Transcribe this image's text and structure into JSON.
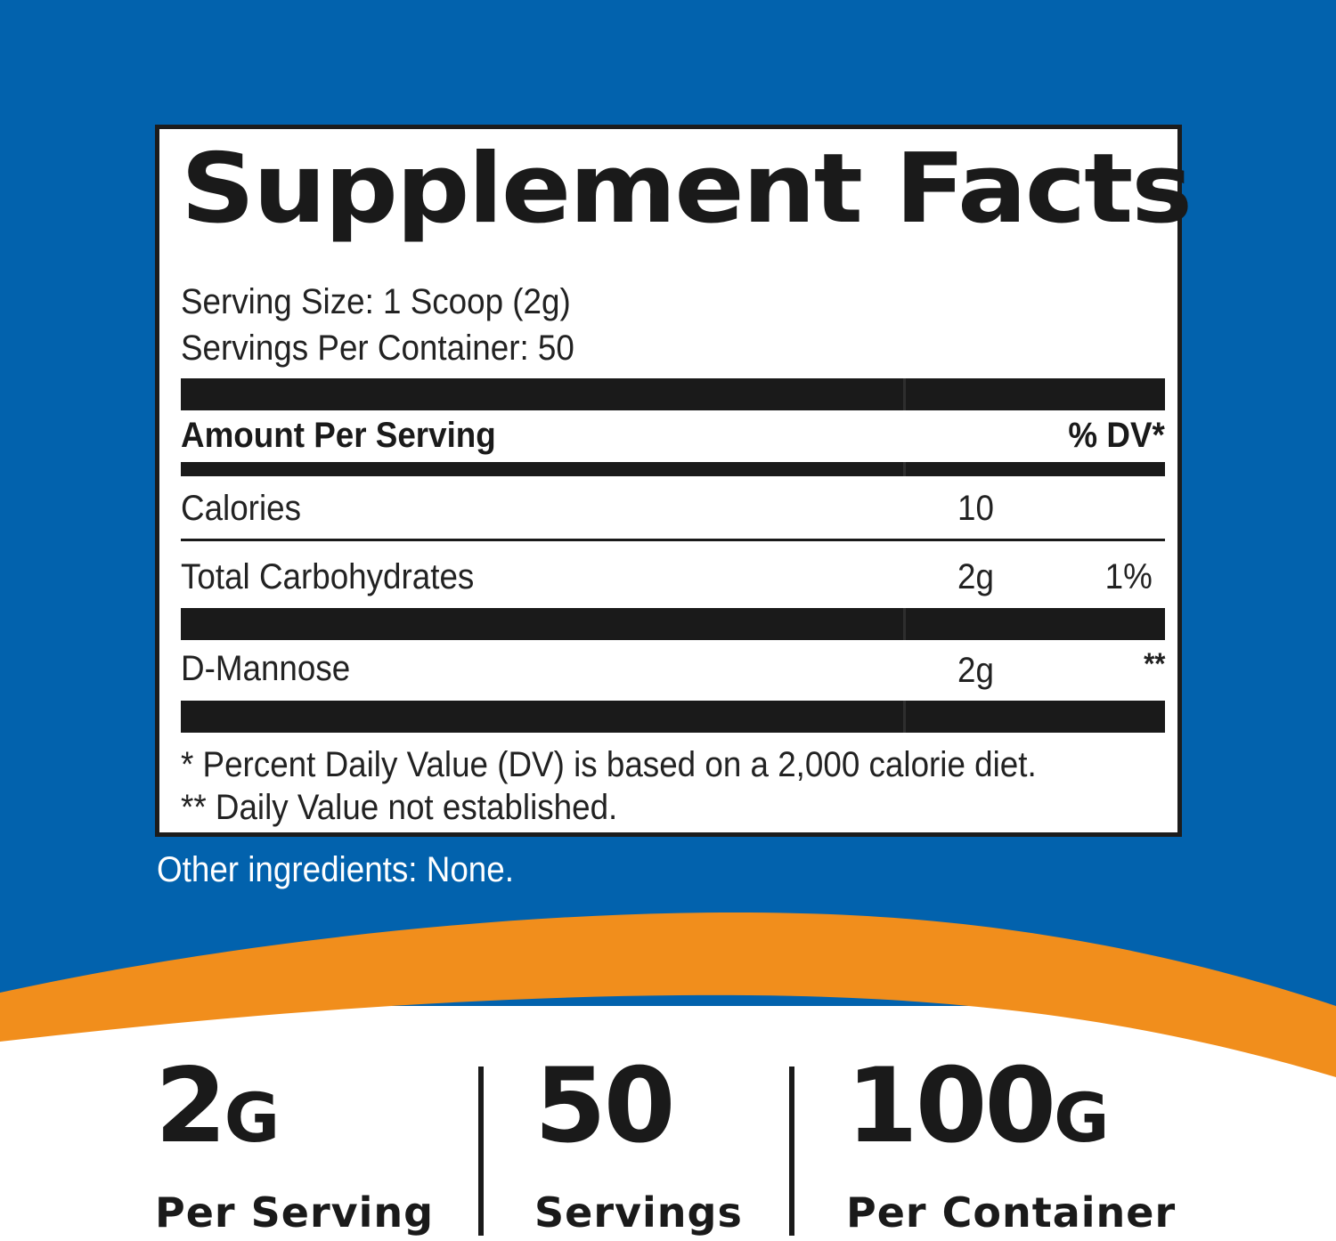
{
  "panel": {
    "title": "Supplement Facts",
    "serving_size": "Serving Size: 1 Scoop (2g)",
    "servings_per_container": "Servings Per Container: 50",
    "header": {
      "amount_label": "Amount Per Serving",
      "dv_label": "% DV*"
    },
    "rows": [
      {
        "name": "Calories",
        "amount": "10",
        "dv": ""
      },
      {
        "name": "Total Carbohydrates",
        "amount": "2g",
        "dv": "1%"
      },
      {
        "name": "D-Mannose",
        "amount": "2g",
        "dv": "**"
      }
    ],
    "footnotes": [
      "* Percent Daily Value (DV) is based on a 2,000 calorie diet.",
      "** Daily Value not established."
    ]
  },
  "other_ingredients": "Other ingredients: None.",
  "stats": [
    {
      "value": "2",
      "unit": "G",
      "caption": "Per Serving"
    },
    {
      "value": "50",
      "unit": "",
      "caption": "Servings"
    },
    {
      "value": "100",
      "unit": "G",
      "caption": "Per Container"
    }
  ],
  "colors": {
    "blue": "#0262ad",
    "orange": "#f18e1c",
    "ink": "#1a1a1a"
  }
}
